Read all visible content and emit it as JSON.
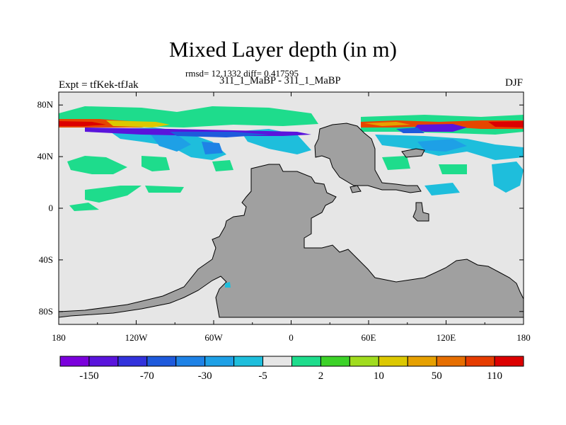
{
  "title": "Mixed Layer depth (in m)",
  "stats": "rmsd= 12.1332 diff= 0.417595",
  "subtitle": "311_1_MaBP - 311_1_MaBP",
  "left_label": "Expt = tfKek-tfJak",
  "right_label": "DJF",
  "map": {
    "lat_range": [
      -90,
      90
    ],
    "lon_range": [
      -180,
      180
    ],
    "lat_ticks": [
      "80N",
      "40N",
      "0",
      "40S",
      "80S"
    ],
    "lon_ticks": [
      "180",
      "120W",
      "60W",
      "0",
      "60E",
      "120E",
      "180"
    ],
    "background_color": "#e6e6e6",
    "land_color": "#a0a0a0"
  },
  "colorbar": {
    "colors": [
      "#7b00dc",
      "#5a14dc",
      "#3232dc",
      "#1e5adc",
      "#1e82e6",
      "#1ea0e6",
      "#1ebedc",
      "#e6e6e6",
      "#1edc8c",
      "#3cd228",
      "#a0dc1e",
      "#dcc800",
      "#e6a000",
      "#e66e00",
      "#e63c00",
      "#dc0000"
    ],
    "labels": [
      "-150",
      "-70",
      "-30",
      "-5",
      "2",
      "10",
      "50",
      "110"
    ]
  }
}
